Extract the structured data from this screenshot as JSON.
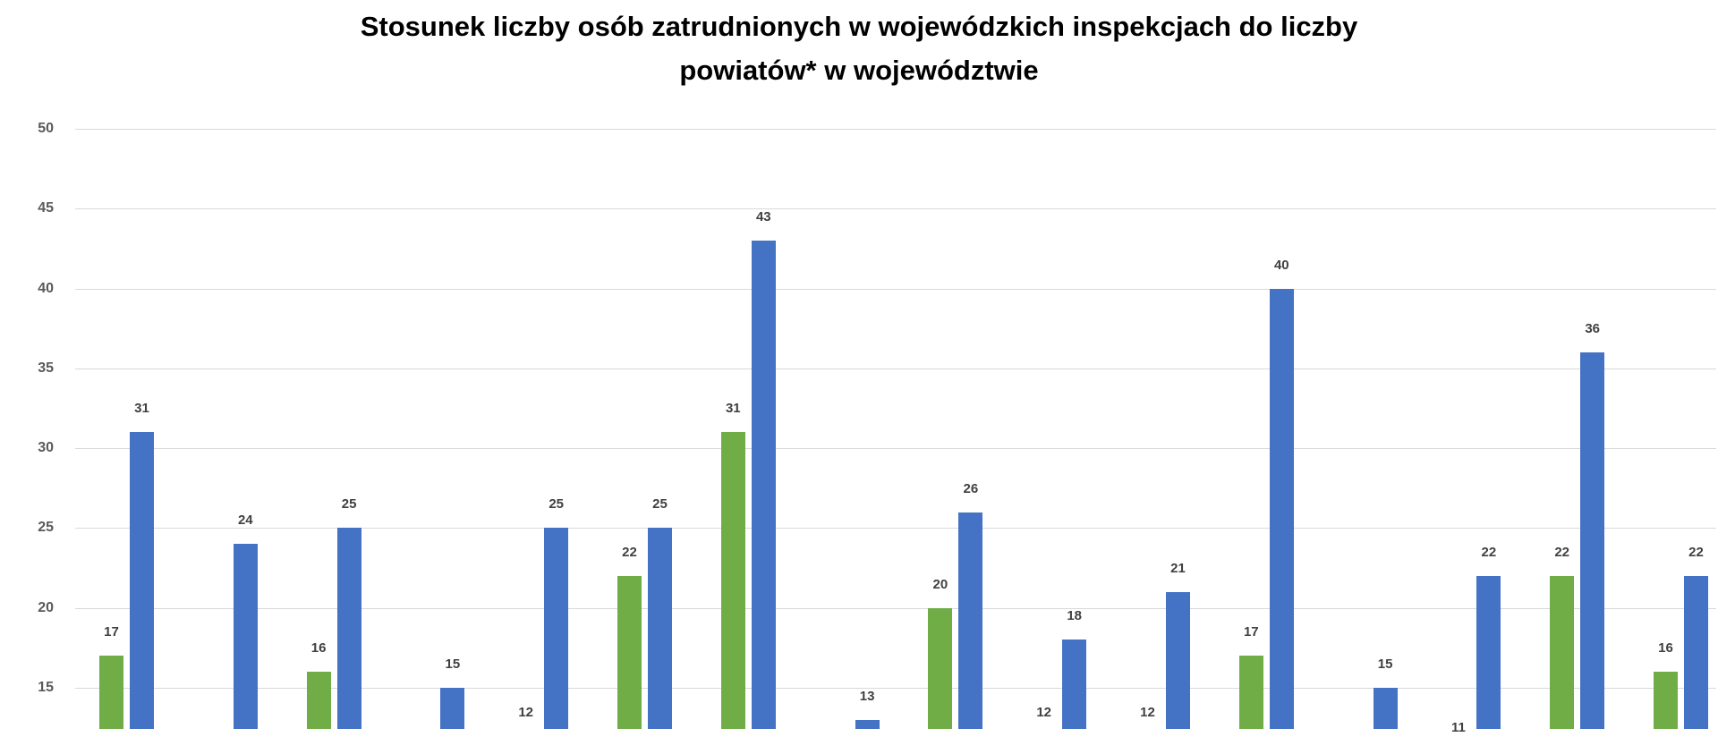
{
  "title": {
    "line1": "Stosunek liczby osób zatrudnionych w wojewódzkich inspekcjach do liczby",
    "line2": "powiatów* w województwie"
  },
  "colors": {
    "green_series": "#70AD47",
    "blue_series": "#4472C4",
    "gridline": "#D9D9D9",
    "axis_text": "#595959",
    "data_label_text": "#404040",
    "title_text": "#000000",
    "background": "#FFFFFF"
  },
  "y_axis": {
    "ticks": [
      50,
      45,
      40,
      35,
      30,
      25,
      20,
      15
    ]
  },
  "chart_data": {
    "type": "bar",
    "title": "Stosunek liczby osób zatrudnionych w wojewódzkich inspekcjach do liczby powiatów* w województwie",
    "note": "chart is cropped at the bottom of the screenshot; x-axis category labels and bars below value ~12 are not visible",
    "legend_position": "not visible",
    "grid": true,
    "ylim_visible_ticks": [
      15,
      50
    ],
    "series_order": [
      "green",
      "blue"
    ],
    "groups": [
      {
        "green": 17,
        "blue": 31
      },
      {
        "green": null,
        "blue": 24
      },
      {
        "green": 16,
        "blue": 25
      },
      {
        "green": null,
        "blue": 15
      },
      {
        "green": 12,
        "blue": 25
      },
      {
        "green": 22,
        "blue": 25
      },
      {
        "green": 31,
        "blue": 43
      },
      {
        "green": null,
        "blue": 13
      },
      {
        "green": 20,
        "blue": 26
      },
      {
        "green": 12,
        "blue": 18
      },
      {
        "green": 12,
        "blue": 21
      },
      {
        "green": 17,
        "blue": 40
      },
      {
        "green": null,
        "blue": 15
      },
      {
        "green": 11,
        "blue": 22
      },
      {
        "green": 22,
        "blue": 36
      },
      {
        "green": 16,
        "blue": 22
      }
    ]
  }
}
